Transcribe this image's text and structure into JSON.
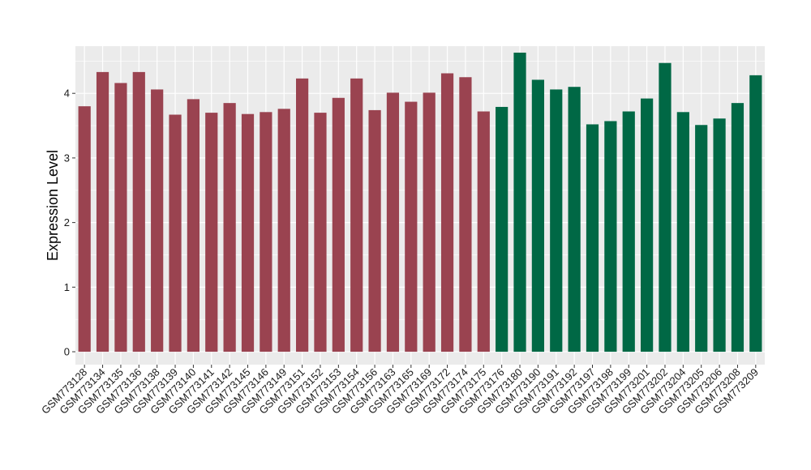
{
  "chart_data": {
    "type": "bar",
    "title": "",
    "xlabel": "",
    "ylabel": "Expression Level",
    "ylim": [
      -0.2,
      4.73
    ],
    "yticks": [
      0,
      1,
      2,
      3,
      4
    ],
    "grid": true,
    "legend": "none",
    "panel_color": "#ebebeb",
    "grid_color": "#ffffff",
    "colors": {
      "group1": "#9a4350",
      "group2": "#006845"
    },
    "categories": [
      "GSM773128",
      "GSM773134",
      "GSM773135",
      "GSM773136",
      "GSM773138",
      "GSM773139",
      "GSM773140",
      "GSM773141",
      "GSM773142",
      "GSM773145",
      "GSM773146",
      "GSM773149",
      "GSM773151",
      "GSM773152",
      "GSM773153",
      "GSM773154",
      "GSM773156",
      "GSM773163",
      "GSM773165",
      "GSM773169",
      "GSM773172",
      "GSM773174",
      "GSM773175",
      "GSM773176",
      "GSM773180",
      "GSM773190",
      "GSM773191",
      "GSM773192",
      "GSM773197",
      "GSM773198",
      "GSM773199",
      "GSM773201",
      "GSM773202",
      "GSM773204",
      "GSM773205",
      "GSM773206",
      "GSM773208",
      "GSM773209"
    ],
    "values": [
      3.8,
      4.33,
      4.16,
      4.33,
      4.06,
      3.67,
      3.91,
      3.7,
      3.85,
      3.68,
      3.71,
      3.76,
      4.23,
      3.7,
      3.93,
      4.23,
      3.74,
      4.01,
      3.87,
      4.01,
      4.31,
      4.25,
      3.72,
      3.79,
      4.63,
      4.21,
      4.06,
      4.1,
      3.52,
      3.57,
      3.72,
      3.92,
      4.47,
      3.71,
      3.51,
      3.61,
      3.85,
      4.28
    ],
    "groups": [
      1,
      1,
      1,
      1,
      1,
      1,
      1,
      1,
      1,
      1,
      1,
      1,
      1,
      1,
      1,
      1,
      1,
      1,
      1,
      1,
      1,
      1,
      1,
      2,
      2,
      2,
      2,
      2,
      2,
      2,
      2,
      2,
      2,
      2,
      2,
      2,
      2,
      2
    ]
  }
}
